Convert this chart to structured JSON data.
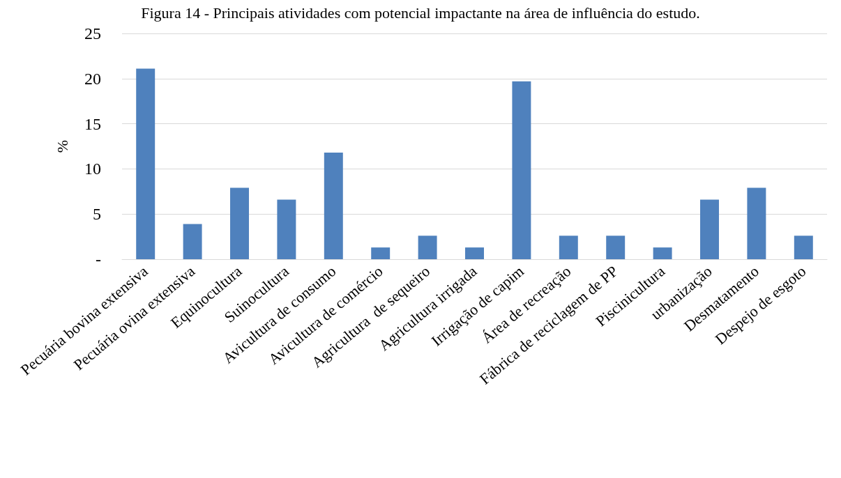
{
  "chart_data": {
    "type": "bar",
    "title": "Figura 14 - Principais atividades com potencial impactante na área de influência do estudo.",
    "ylabel": "%",
    "categories": [
      "Pecuária bovina extensiva",
      "Pecuária ovina extensiva",
      "Equinocultura",
      "Suinocultura",
      "Avicultura de consumo",
      "Avicultura de comércio",
      "Agricultura  de sequeiro",
      "Agricultura irrigada",
      "Irrigação de capim",
      "Área de recreação",
      "Fábrica de reciclagem de PP",
      "Piscinicultura",
      "urbanização",
      "Desmatamento",
      "Despejo de esgoto"
    ],
    "values": [
      21.1,
      3.9,
      7.9,
      6.6,
      11.8,
      1.3,
      2.6,
      1.3,
      19.7,
      2.6,
      2.6,
      1.3,
      6.6,
      7.9,
      2.6
    ],
    "color": "#4f81bd",
    "ylim": [
      0,
      25
    ],
    "yticks": [
      {
        "value": 0,
        "label": "-"
      },
      5,
      10,
      15,
      20,
      25
    ],
    "grid": "y"
  }
}
